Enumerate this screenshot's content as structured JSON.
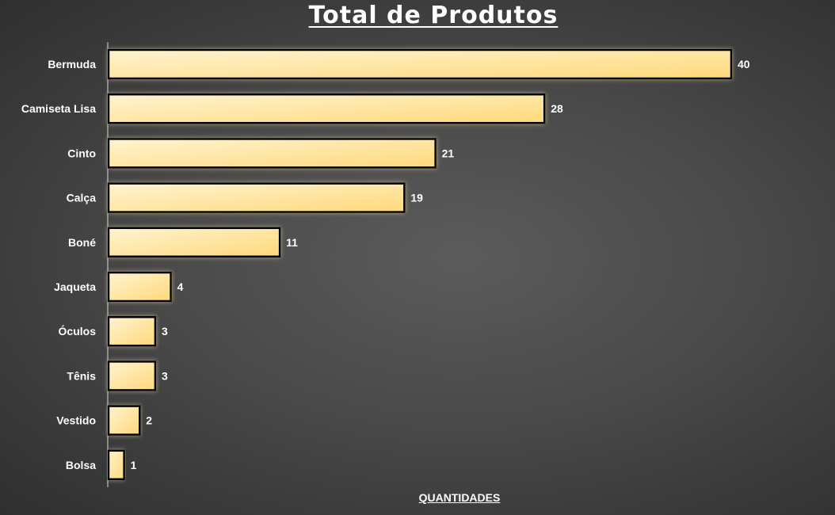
{
  "chart_data": {
    "type": "bar",
    "orientation": "horizontal",
    "title": "Total de Produtos",
    "xlabel": "QUANTIDADES",
    "ylabel": "",
    "categories": [
      "Bermuda",
      "Camiseta Lisa",
      "Cinto",
      "Calça",
      "Boné",
      "Jaqueta",
      "Óculos",
      "Tênis",
      "Vestido",
      "Bolsa"
    ],
    "values": [
      40,
      28,
      21,
      19,
      11,
      4,
      3,
      3,
      2,
      1
    ],
    "xlim": [
      0,
      40
    ],
    "grid": false,
    "data_labels": true,
    "legend": "none",
    "colors": {
      "bar_fill_light": "#fff3d0",
      "bar_fill_dark": "#ffd97a",
      "bar_stroke": "#000000",
      "bar_glow": "#ffe9a8",
      "text": "#ffffff",
      "axis": "#d9d9d9"
    }
  }
}
